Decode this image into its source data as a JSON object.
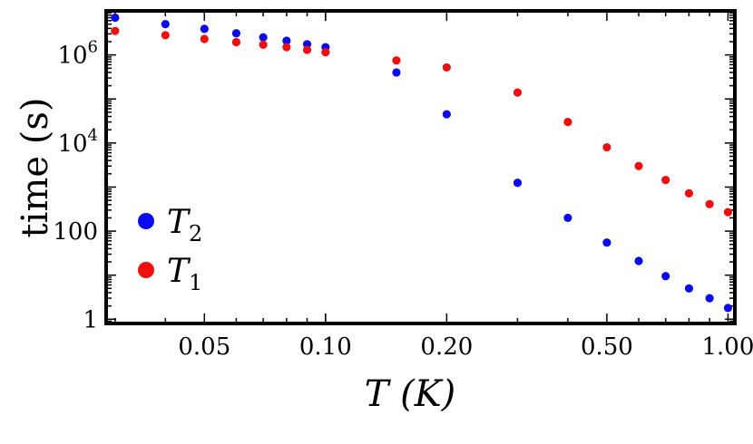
{
  "chart_data": {
    "type": "scatter",
    "title": "",
    "xlabel": "T (K)",
    "ylabel": "time (s)",
    "x_scale": "log",
    "y_scale": "log",
    "xlim": [
      0.0285,
      1.04
    ],
    "ylim": [
      0.8,
      10000000
    ],
    "x_ticks": [
      {
        "value": 0.05,
        "label": "0.05"
      },
      {
        "value": 0.1,
        "label": "0.10"
      },
      {
        "value": 0.2,
        "label": "0.20"
      },
      {
        "value": 0.5,
        "label": "0.50"
      },
      {
        "value": 1.0,
        "label": "1.00"
      }
    ],
    "y_ticks": [
      {
        "value": 1,
        "base": "1",
        "exp": ""
      },
      {
        "value": 100,
        "base": "100",
        "exp": ""
      },
      {
        "value": 10000,
        "base": "10",
        "exp": "4"
      },
      {
        "value": 1000000,
        "base": "10",
        "exp": "6"
      }
    ],
    "legend_position": "bottom-left",
    "series": [
      {
        "name": "T2",
        "label_main": "T",
        "label_sub": "2",
        "color": "#0a0aee",
        "x": [
          0.03,
          0.04,
          0.05,
          0.06,
          0.07,
          0.08,
          0.09,
          0.1,
          0.15,
          0.2,
          0.3,
          0.4,
          0.5,
          0.6,
          0.7,
          0.8,
          0.9,
          1.0
        ],
        "y": [
          7000000,
          5000000,
          3900000,
          3100000,
          2500000,
          2100000,
          1750000,
          1500000,
          400000,
          45000,
          1250,
          200,
          55,
          21,
          9.5,
          5,
          3,
          1.8
        ]
      },
      {
        "name": "T1",
        "label_main": "T",
        "label_sub": "1",
        "color": "#ee1010",
        "x": [
          0.03,
          0.04,
          0.05,
          0.06,
          0.07,
          0.08,
          0.09,
          0.1,
          0.15,
          0.2,
          0.3,
          0.4,
          0.5,
          0.6,
          0.7,
          0.8,
          0.9,
          1.0
        ],
        "y": [
          3500000,
          2800000,
          2300000,
          1950000,
          1700000,
          1500000,
          1300000,
          1150000,
          750000,
          520000,
          140000,
          30000,
          8000,
          3000,
          1450,
          720,
          410,
          270
        ]
      }
    ]
  }
}
